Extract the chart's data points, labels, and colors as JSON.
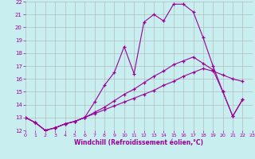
{
  "xlabel": "Windchill (Refroidissement éolien,°C)",
  "bg_color": "#c8eef0",
  "grid_color": "#b0b0b0",
  "line_color": "#990099",
  "xlim": [
    0,
    23
  ],
  "ylim": [
    12,
    22
  ],
  "xticks": [
    0,
    1,
    2,
    3,
    4,
    5,
    6,
    7,
    8,
    9,
    10,
    11,
    12,
    13,
    14,
    15,
    16,
    17,
    18,
    19,
    20,
    21,
    22,
    23
  ],
  "yticks": [
    12,
    13,
    14,
    15,
    16,
    17,
    18,
    19,
    20,
    21,
    22
  ],
  "line1_x": [
    0,
    1,
    2,
    3,
    4,
    5,
    6,
    7,
    8,
    9,
    10,
    11,
    12,
    13,
    14,
    15,
    16,
    17,
    18,
    19,
    20,
    21,
    22
  ],
  "line1_y": [
    13.0,
    12.6,
    12.0,
    12.2,
    12.5,
    12.7,
    13.0,
    14.2,
    15.5,
    16.5,
    18.5,
    16.4,
    20.4,
    21.0,
    20.5,
    21.8,
    21.8,
    21.2,
    19.2,
    17.0,
    15.0,
    13.1,
    14.4
  ],
  "line2_x": [
    0,
    1,
    2,
    3,
    4,
    5,
    6,
    7,
    8,
    9,
    10,
    11,
    12,
    13,
    14,
    15,
    16,
    17,
    18,
    19,
    20,
    21,
    22
  ],
  "line2_y": [
    13.0,
    12.6,
    12.0,
    12.2,
    12.5,
    12.7,
    13.0,
    13.4,
    13.8,
    14.3,
    14.8,
    15.2,
    15.7,
    16.2,
    16.6,
    17.1,
    17.4,
    17.7,
    17.2,
    16.7,
    15.0,
    13.1,
    14.4
  ],
  "line3_x": [
    0,
    1,
    2,
    3,
    4,
    5,
    6,
    7,
    8,
    9,
    10,
    11,
    12,
    13,
    14,
    15,
    16,
    17,
    18,
    19,
    20,
    21,
    22
  ],
  "line3_y": [
    13.0,
    12.6,
    12.0,
    12.2,
    12.5,
    12.7,
    13.0,
    13.3,
    13.6,
    13.9,
    14.2,
    14.5,
    14.8,
    15.1,
    15.5,
    15.8,
    16.2,
    16.5,
    16.8,
    16.6,
    16.3,
    16.0,
    15.8
  ]
}
